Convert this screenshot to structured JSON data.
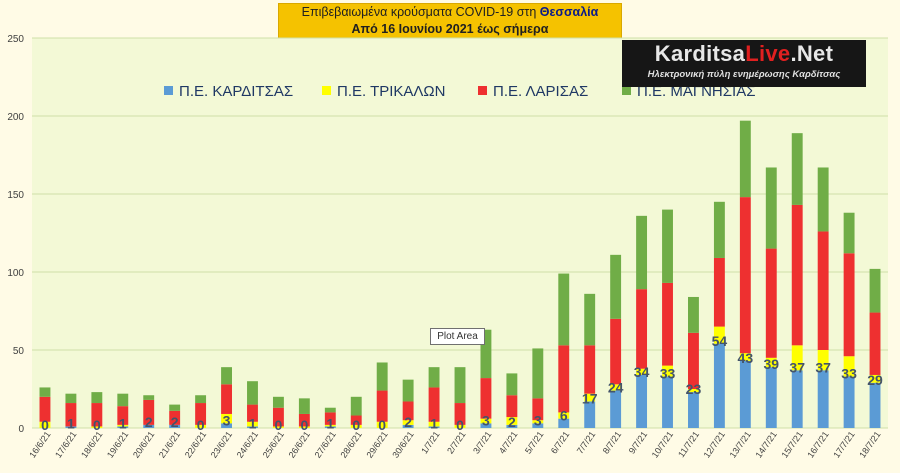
{
  "title": {
    "prefix": "Επιβεβαιωμένα κρούσματα COVID-19 στη ",
    "region": "Θεσσαλία",
    "subtitle": "Από 16 Ιουνίου 2021 έως σήμερα"
  },
  "logo": {
    "name_part1": "Karditsa",
    "name_part2": "Live",
    "name_part3": ".Net",
    "tagline": "Ηλεκτρονική πύλη ενημέρωσης Καρδίτσας"
  },
  "tooltip": "Plot Area",
  "colors": {
    "background": "#fffbe6",
    "plot_area": "#f3f9d6",
    "grid": "#cfe0a8",
    "kardits": "#5b9bd5",
    "trikalon": "#ffff00",
    "larisas": "#ee3030",
    "magnisias": "#70ad47",
    "label": "#44546a"
  },
  "chart_data": {
    "type": "bar",
    "stacked": true,
    "categories": [
      "16/6/21",
      "17/6/21",
      "18/6/21",
      "19/6/21",
      "20/6/21",
      "21/6/21",
      "22/6/21",
      "23/6/21",
      "24/6/21",
      "25/6/21",
      "26/6/21",
      "27/6/21",
      "28/6/21",
      "29/6/21",
      "30/6/21",
      "1/7/21",
      "2/7/21",
      "3/7/21",
      "4/7/21",
      "5/7/21",
      "6/7/21",
      "7/7/21",
      "8/7/21",
      "9/7/21",
      "10/7/21",
      "11/7/21",
      "12/7/21",
      "13/7/21",
      "14/7/21",
      "15/7/21",
      "16/7/21",
      "17/7/21",
      "18/7/21"
    ],
    "series": [
      {
        "name": "Π.Ε. ΚΑΡΔΙΤΣΑΣ",
        "values": [
          0,
          1,
          0,
          1,
          2,
          2,
          0,
          3,
          1,
          0,
          0,
          1,
          0,
          0,
          2,
          1,
          0,
          3,
          2,
          3,
          6,
          17,
          24,
          34,
          33,
          23,
          54,
          43,
          39,
          37,
          37,
          33,
          29
        ]
      },
      {
        "name": "Π.Ε. ΤΡΙΚΑΛΩΝ",
        "values": [
          4,
          0,
          1,
          1,
          0,
          0,
          2,
          6,
          3,
          1,
          1,
          1,
          2,
          4,
          3,
          3,
          2,
          3,
          5,
          2,
          4,
          5,
          4,
          4,
          7,
          2,
          11,
          5,
          6,
          16,
          13,
          13,
          5
        ]
      },
      {
        "name": "Π.Ε. ΛΑΡΙΣΑΣ",
        "values": [
          16,
          15,
          15,
          12,
          16,
          9,
          14,
          19,
          11,
          12,
          8,
          8,
          6,
          20,
          12,
          22,
          14,
          26,
          14,
          14,
          43,
          31,
          42,
          51,
          53,
          36,
          44,
          100,
          70,
          90,
          76,
          66,
          40
        ]
      },
      {
        "name": "Π.Ε. ΜΑΓΝΗΣΙΑΣ",
        "values": [
          6,
          6,
          7,
          8,
          3,
          4,
          5,
          11,
          15,
          7,
          10,
          3,
          12,
          18,
          14,
          13,
          23,
          31,
          14,
          32,
          46,
          33,
          41,
          47,
          47,
          23,
          36,
          49,
          52,
          46,
          41,
          26,
          28
        ]
      }
    ],
    "data_labels_series": "Π.Ε. ΚΑΡΔΙΤΣΑΣ",
    "ylim": [
      0,
      250
    ],
    "yticks": [
      0,
      50,
      100,
      150,
      200,
      250
    ],
    "grid": true,
    "legend": "top-center"
  }
}
